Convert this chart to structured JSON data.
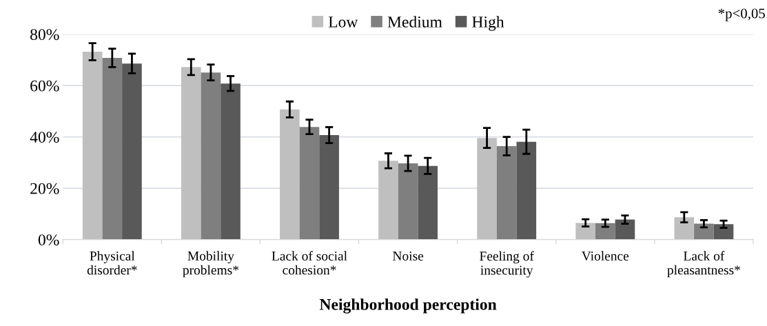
{
  "chart_data": {
    "type": "bar",
    "xlabel": "Neighborhood perception",
    "categories": [
      "Physical\ndisorder*",
      "Mobility\nproblems*",
      "Lack of social\ncohesion*",
      "Noise",
      "Feeling of\ninsecurity",
      "Violence",
      "Lack of\npleasantness*"
    ],
    "series": [
      {
        "name": "Low",
        "color": "#bfbfbf",
        "values": [
          73.2,
          67.2,
          50.7,
          30.7,
          39.6,
          6.5,
          8.7
        ],
        "errors": [
          3.3,
          3.1,
          3.1,
          2.9,
          3.9,
          1.4,
          2.0
        ]
      },
      {
        "name": "Medium",
        "color": "#7f7f7f",
        "values": [
          70.8,
          65.1,
          43.9,
          29.7,
          36.4,
          6.4,
          6.2
        ],
        "errors": [
          3.6,
          3.1,
          2.8,
          3.0,
          3.6,
          1.4,
          1.4
        ]
      },
      {
        "name": "High",
        "color": "#595959",
        "values": [
          68.6,
          60.8,
          40.7,
          28.7,
          38.1,
          7.8,
          6.0
        ],
        "errors": [
          3.8,
          2.9,
          3.1,
          3.1,
          4.7,
          1.6,
          1.4
        ]
      }
    ],
    "ylim": [
      0,
      80
    ],
    "yticks": [
      {
        "value": 0,
        "label": "0%"
      },
      {
        "value": 20,
        "label": "20%"
      },
      {
        "value": 40,
        "label": "40%"
      },
      {
        "value": 60,
        "label": "60%"
      },
      {
        "value": 80,
        "label": "80%"
      }
    ],
    "grid": "y",
    "legend": "top",
    "annotations": [
      "*p<0,05"
    ]
  }
}
